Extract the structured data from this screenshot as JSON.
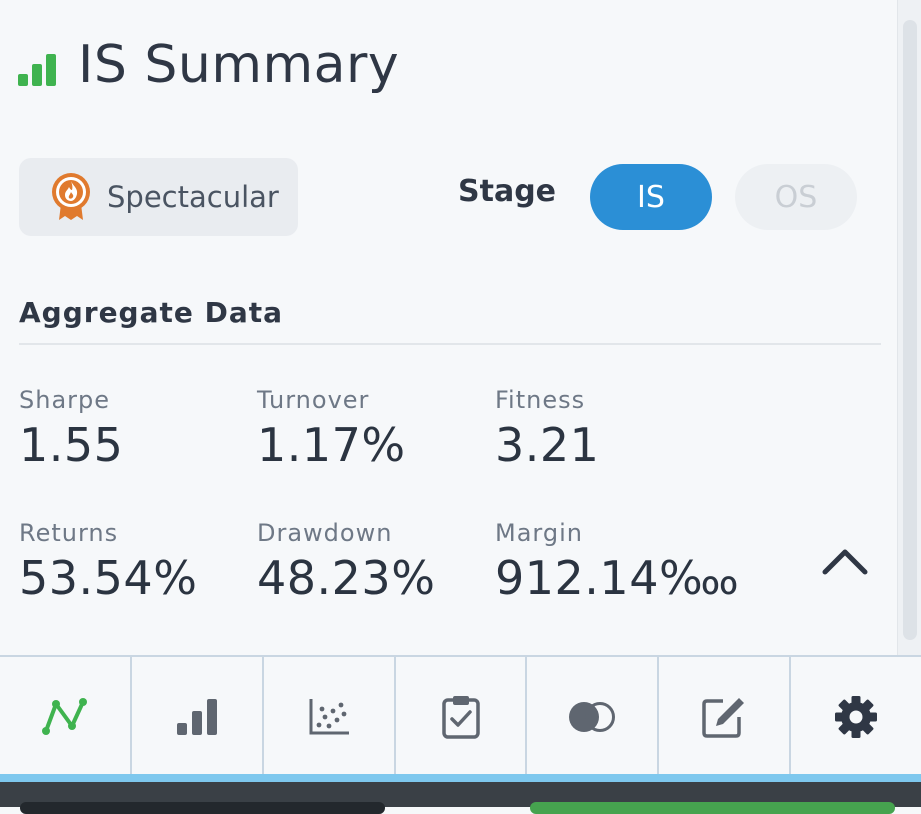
{
  "header": {
    "title": "IS Summary",
    "icon": "bar-chart-icon",
    "icon_color": "#3fb34f"
  },
  "badge": {
    "label": "Spectacular",
    "icon": "medal-flame-icon",
    "icon_color": "#e07a2e"
  },
  "stage": {
    "label": "Stage",
    "options": [
      "IS",
      "OS"
    ],
    "selected": "IS",
    "active_color": "#2b8fd6"
  },
  "aggregate": {
    "title": "Aggregate Data",
    "stats": {
      "sharpe": {
        "label": "Sharpe",
        "value": "1.55"
      },
      "turnover": {
        "label": "Turnover",
        "value": "1.17%"
      },
      "fitness": {
        "label": "Fitness",
        "value": "3.21"
      },
      "returns": {
        "label": "Returns",
        "value": "53.54%"
      },
      "drawdown": {
        "label": "Drawdown",
        "value": "48.23%"
      },
      "margin": {
        "label": "Margin",
        "value": "912.14‱"
      }
    }
  },
  "nav": {
    "items": [
      {
        "icon": "line-chart-icon",
        "active": true,
        "color": "#3fb34f"
      },
      {
        "icon": "bar-chart-icon"
      },
      {
        "icon": "scatter-plot-icon"
      },
      {
        "icon": "clipboard-check-icon"
      },
      {
        "icon": "correlation-circles-icon"
      },
      {
        "icon": "edit-icon"
      },
      {
        "icon": "settings-gear-icon"
      }
    ]
  }
}
